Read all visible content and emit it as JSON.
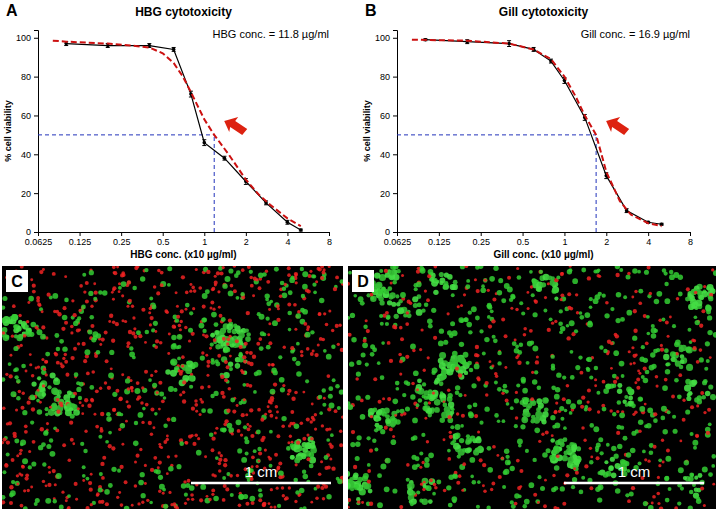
{
  "chart_data": [
    {
      "type": "line",
      "panel_label": "A",
      "title": "HBG cytotoxicity",
      "annotation": "HBG conc. = 11.8 µg/ml",
      "x_label": "HBG conc. (x10 µg/ml)",
      "y_label": "% cell viability",
      "log": "x",
      "xlim": [
        0.0625,
        8
      ],
      "xticks": [
        0.0625,
        0.125,
        0.25,
        0.5,
        1,
        2,
        4,
        8
      ],
      "ylim": [
        0,
        104
      ],
      "yticks": [
        0,
        20,
        40,
        60,
        80,
        100
      ],
      "ic50": {
        "x": 1.18,
        "y": 50
      },
      "series": [
        {
          "color": "#000000",
          "marker": "circle",
          "line_style": "solid",
          "x": [
            0.1,
            0.2,
            0.4,
            0.6,
            0.8,
            1,
            1.4,
            2,
            2.8,
            4,
            5
          ],
          "values": [
            97,
            96,
            96,
            94,
            71,
            46,
            38,
            26,
            15,
            5,
            1
          ],
          "errors": [
            1,
            1,
            1,
            1,
            1.5,
            1.5,
            1,
            1.5,
            1,
            1,
            0.5
          ]
        },
        {
          "color": "#cc1111",
          "line_style": "dashed",
          "x": [
            0.08,
            0.1,
            0.2,
            0.3,
            0.4,
            0.5,
            0.6,
            0.7,
            0.8,
            1,
            1.18,
            1.5,
            2,
            2.5,
            3,
            4,
            5
          ],
          "values": [
            98.5,
            98,
            97,
            96,
            95,
            92,
            87,
            80,
            72,
            58,
            50,
            40,
            27,
            19,
            14,
            7,
            3
          ]
        }
      ]
    },
    {
      "type": "line",
      "panel_label": "B",
      "title": "Gill cytotoxicity",
      "annotation": "Gill conc. = 16.9 µg/ml",
      "x_label": "Gill  conc.  (x10 µg/ml)",
      "y_label": "% cell viability",
      "log": "x",
      "xlim": [
        0.0625,
        8
      ],
      "xticks": [
        0.0625,
        0.125,
        0.25,
        0.5,
        1,
        2,
        4,
        8
      ],
      "ylim": [
        0,
        104
      ],
      "yticks": [
        0,
        20,
        40,
        60,
        80,
        100
      ],
      "ic50": {
        "x": 1.69,
        "y": 50
      },
      "series": [
        {
          "color": "#000000",
          "marker": "circle",
          "line_style": "solid",
          "x": [
            0.1,
            0.2,
            0.4,
            0.6,
            0.8,
            1,
            1.4,
            2,
            2.8,
            4,
            5
          ],
          "values": [
            99,
            98,
            97,
            94,
            88,
            78,
            59,
            29,
            11,
            5,
            4
          ],
          "errors": [
            0.5,
            1,
            1.5,
            1,
            1,
            1.5,
            1.5,
            1.5,
            1,
            0.5,
            0.5
          ]
        },
        {
          "color": "#cc1111",
          "line_style": "dashed",
          "x": [
            0.08,
            0.2,
            0.4,
            0.6,
            0.8,
            1,
            1.2,
            1.4,
            1.69,
            2,
            2.5,
            3,
            4,
            5
          ],
          "values": [
            99,
            98.5,
            97,
            94,
            89,
            80,
            70,
            60,
            50,
            31,
            16,
            9,
            4.5,
            3
          ]
        }
      ]
    }
  ],
  "images": [
    {
      "panel_label": "C",
      "scale_bar": "1 cm"
    },
    {
      "panel_label": "D",
      "scale_bar": "1 cm"
    }
  ]
}
